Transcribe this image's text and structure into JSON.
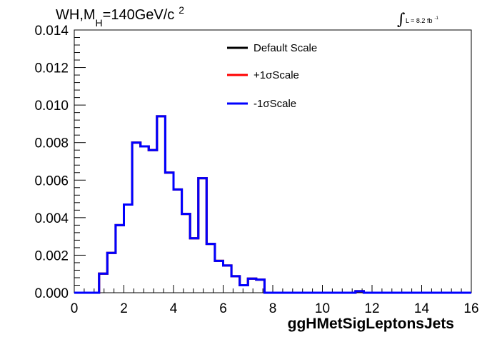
{
  "title": {
    "prefix": "WH,M",
    "subscript": "H",
    "main": "=140GeV/c",
    "superscript": "2"
  },
  "lumi": {
    "integral": "∫",
    "text": "L = 8.2 fb",
    "superscript": "-1"
  },
  "chart_data": {
    "type": "line",
    "xlabel": "ggHMetSigLeptonsJets",
    "ylabel": "",
    "xlim": [
      0,
      16
    ],
    "ylim": [
      0,
      0.014
    ],
    "grid": false,
    "legend_position": "top-center",
    "x_ticks": [
      0,
      2,
      4,
      6,
      8,
      10,
      12,
      14,
      16
    ],
    "x_tick_labels": [
      "0",
      "2",
      "4",
      "6",
      "8",
      "10",
      "12",
      "14",
      "16"
    ],
    "y_ticks": [
      0,
      0.002,
      0.004,
      0.006,
      0.008,
      0.01,
      0.012,
      0.014
    ],
    "y_tick_labels": [
      "0.000",
      "0.002",
      "0.004",
      "0.006",
      "0.008",
      "0.010",
      "0.012",
      "0.014"
    ],
    "bin_edges": [
      0,
      0.333,
      0.667,
      1.0,
      1.333,
      1.667,
      2.0,
      2.333,
      2.667,
      3.0,
      3.333,
      3.667,
      4.0,
      4.333,
      4.667,
      5.0,
      5.333,
      5.667,
      6.0,
      6.333,
      6.667,
      7.0,
      7.333,
      7.667,
      8.0,
      8.333,
      8.667,
      9.0,
      9.333,
      9.667,
      10.0,
      10.333,
      10.667,
      11.0,
      11.333,
      11.667,
      12.0,
      12.333,
      12.667,
      13.0,
      13.333,
      13.667,
      14.0,
      14.333,
      14.667,
      15.0,
      15.333,
      15.667,
      16.0
    ],
    "series": [
      {
        "name": "Default Scale",
        "color": "#000000",
        "values": [
          0,
          0,
          0,
          0.00102,
          0.00212,
          0.0036,
          0.0047,
          0.008,
          0.0078,
          0.0076,
          0.0094,
          0.0064,
          0.0055,
          0.0042,
          0.0029,
          0.0061,
          0.0026,
          0.0017,
          0.00145,
          0.00088,
          0.0004,
          0.00075,
          0.0007,
          0,
          0,
          0,
          0,
          0,
          0,
          0,
          0,
          0,
          0,
          0,
          8e-05,
          0,
          0,
          0,
          0,
          0,
          0,
          0,
          0,
          0,
          0,
          0,
          0,
          0
        ]
      },
      {
        "name": "+1σScale",
        "color": "#ff0000",
        "values": [
          0,
          0,
          0,
          0.00102,
          0.00212,
          0.0036,
          0.0047,
          0.008,
          0.0078,
          0.0076,
          0.0094,
          0.0064,
          0.0055,
          0.0042,
          0.0029,
          0.0061,
          0.0026,
          0.0017,
          0.00145,
          0.00088,
          0.0004,
          0.00075,
          0.0007,
          0,
          0,
          0,
          0,
          0,
          0,
          0,
          0,
          0,
          0,
          0,
          8e-05,
          0,
          0,
          0,
          0,
          0,
          0,
          0,
          0,
          0,
          0,
          0,
          0,
          0
        ]
      },
      {
        "name": "-1σScale",
        "color": "#0000ff",
        "values": [
          0,
          0,
          0,
          0.00102,
          0.00212,
          0.0036,
          0.0047,
          0.008,
          0.0078,
          0.0076,
          0.0094,
          0.0064,
          0.0055,
          0.0042,
          0.0029,
          0.0061,
          0.0026,
          0.0017,
          0.00145,
          0.00088,
          0.0004,
          0.00075,
          0.0007,
          0,
          0,
          0,
          0,
          0,
          0,
          0,
          0,
          0,
          0,
          0,
          8e-05,
          0,
          0,
          0,
          0,
          0,
          0,
          0,
          0,
          0,
          0,
          0,
          0,
          0
        ]
      }
    ]
  }
}
